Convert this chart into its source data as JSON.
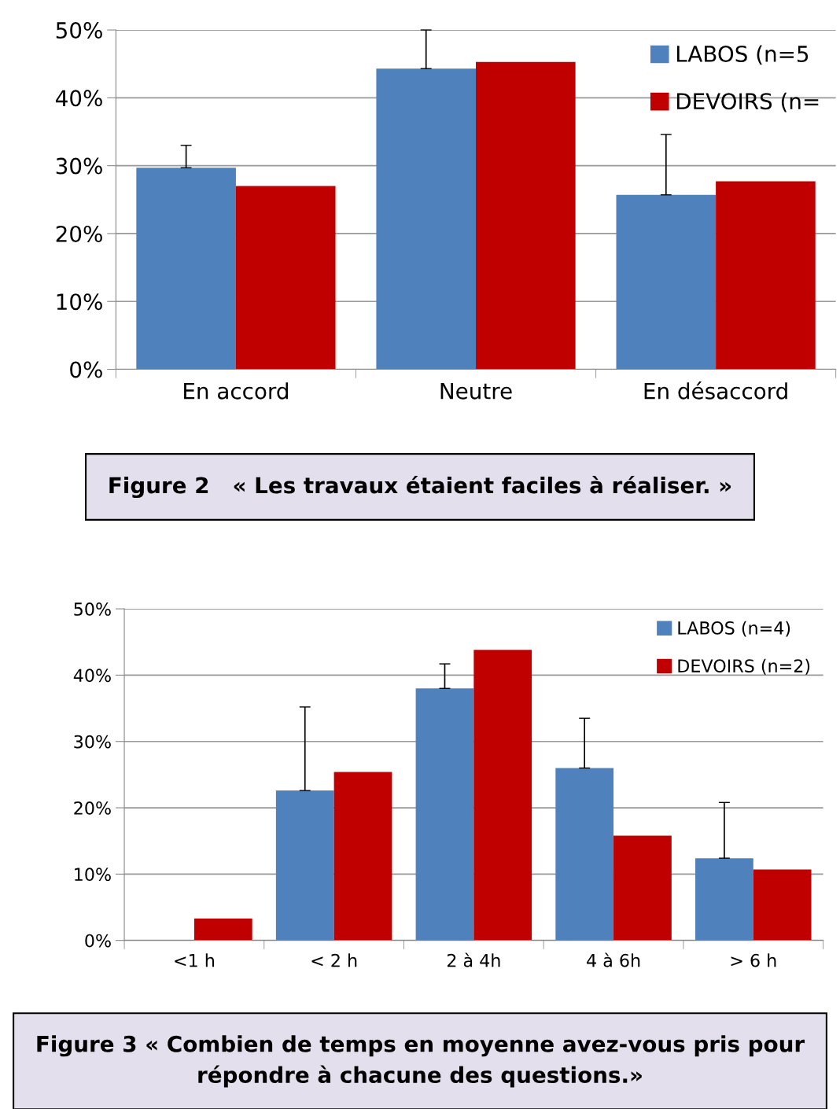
{
  "chart_data": [
    {
      "type": "bar",
      "title": "Figure 2   « Les travaux étaient faciles à réaliser. »",
      "categories": [
        "En accord",
        "Neutre",
        "En désaccord"
      ],
      "series": [
        {
          "name": "LABOS (n=5",
          "color": "#4f81bd",
          "values": [
            29.7,
            44.3,
            25.7
          ],
          "errors": [
            [
              29.7,
              33.0
            ],
            [
              44.3,
              50
            ],
            [
              25.7,
              34.6
            ]
          ]
        },
        {
          "name": "DEVOIRS (n=",
          "color": "#c00000",
          "values": [
            27.0,
            45.3,
            27.7
          ]
        }
      ],
      "ylim": [
        0,
        50
      ],
      "yticks": [
        {
          "value": 0,
          "label": "0%"
        },
        {
          "value": 10,
          "label": "10%"
        },
        {
          "value": 20,
          "label": "20%"
        },
        {
          "value": 30,
          "label": "30%"
        },
        {
          "value": 40,
          "label": "40%"
        },
        {
          "value": 50,
          "label": "50%"
        }
      ],
      "grid": "y",
      "legend": "top right"
    },
    {
      "type": "bar",
      "title": "Figure 3 « Combien de temps en moyenne avez-vous pris pour répondre à chacune des questions.»",
      "categories": [
        "<1 h",
        "< 2 h",
        "2 à 4h",
        "4 à 6h",
        "> 6 h"
      ],
      "series": [
        {
          "name": "LABOS (n=4)",
          "color": "#4f81bd",
          "values": [
            null,
            22.6,
            38.0,
            26.0,
            12.4
          ],
          "errors": [
            null,
            [
              22.6,
              35.2
            ],
            [
              38.0,
              41.7
            ],
            [
              26.0,
              33.5
            ],
            [
              12.4,
              20.8
            ]
          ]
        },
        {
          "name": "DEVOIRS (n=2)",
          "color": "#c00000",
          "values": [
            3.3,
            25.4,
            43.8,
            15.8,
            10.7
          ]
        }
      ],
      "ylim": [
        0,
        50
      ],
      "yticks": [
        {
          "value": 0,
          "label": "0%"
        },
        {
          "value": 10,
          "label": "10%"
        },
        {
          "value": 20,
          "label": "20%"
        },
        {
          "value": 30,
          "label": "30%"
        },
        {
          "value": 40,
          "label": "40%"
        },
        {
          "value": 50,
          "label": "50%"
        }
      ],
      "grid": "y",
      "legend": "top right"
    }
  ]
}
